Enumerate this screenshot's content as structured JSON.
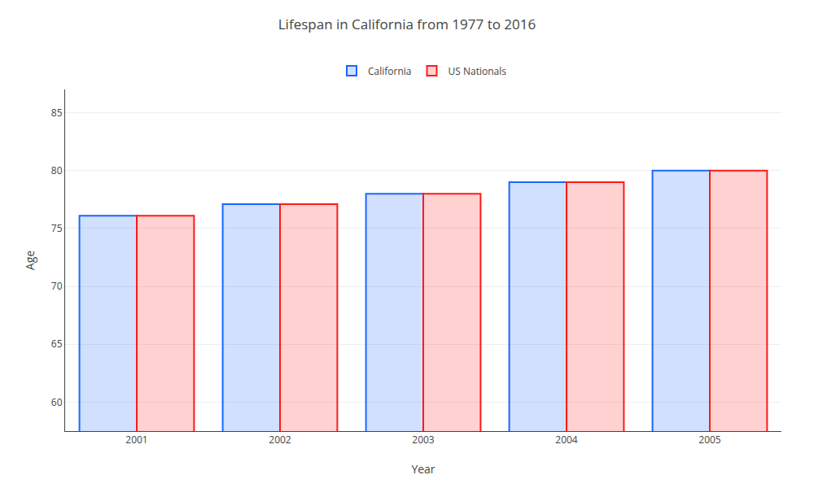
{
  "chart_data": {
    "type": "bar",
    "title": "Lifespan in California from 1977 to 2016",
    "xlabel": "Year",
    "ylabel": "Age",
    "categories": [
      "2001",
      "2002",
      "2003",
      "2004",
      "2005"
    ],
    "series": [
      {
        "name": "California",
        "color": "#1a66ff",
        "values": [
          76.1,
          77.1,
          78.0,
          79.0,
          80.0
        ]
      },
      {
        "name": "US Nationals",
        "color": "#ff1a1a",
        "values": [
          76.1,
          77.1,
          78.0,
          79.0,
          80.0
        ]
      }
    ],
    "ylim": [
      57.5,
      87
    ],
    "yticks": [
      60,
      65,
      70,
      75,
      80,
      85
    ],
    "grid": true,
    "legend": "top"
  }
}
